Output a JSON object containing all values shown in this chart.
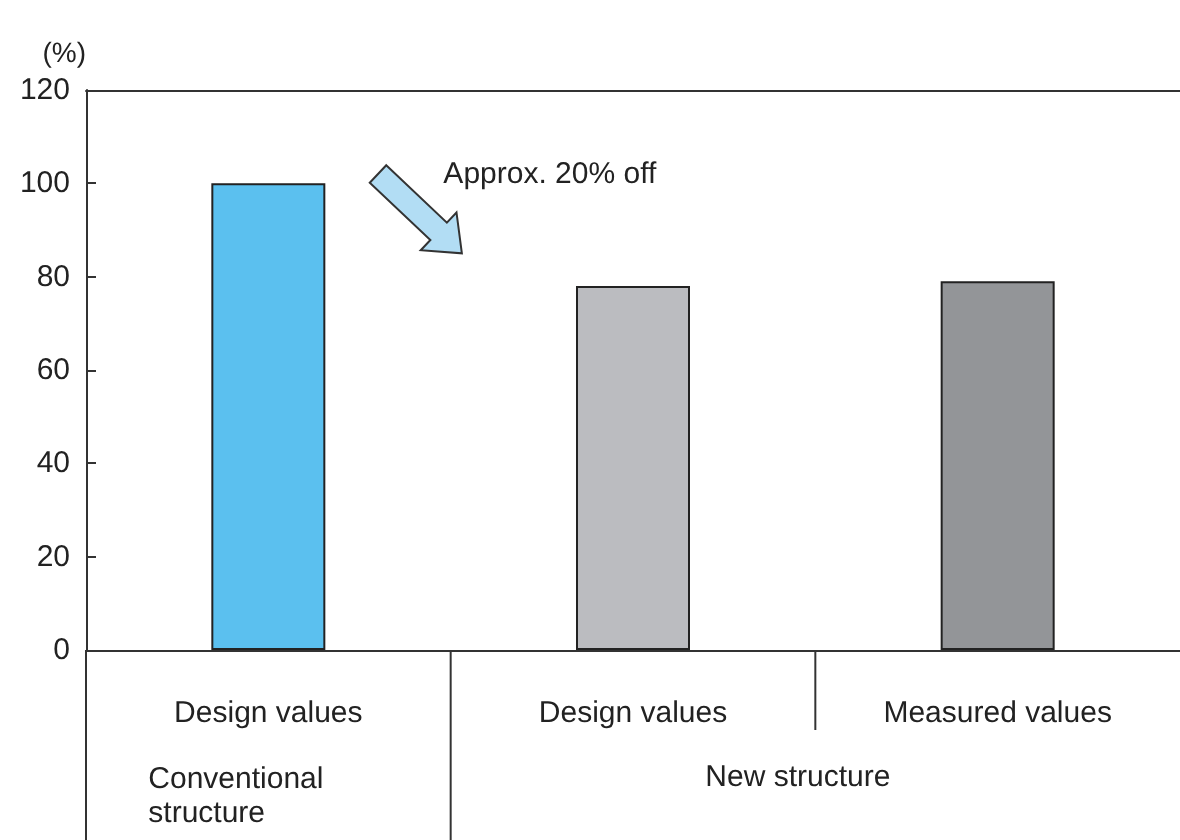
{
  "chart_data": {
    "type": "bar",
    "ylabel": "(%)",
    "categories": [
      "Design values",
      "Design values",
      "Measured values"
    ],
    "values": [
      100,
      78,
      79
    ],
    "colors": [
      "#5bc0ef",
      "#bbbcc0",
      "#939598"
    ],
    "ylim": [
      0,
      120
    ],
    "yticks": [
      0,
      20,
      40,
      60,
      80,
      100,
      120
    ],
    "grid": false,
    "annotations": [
      "Approx. 20% off",
      "Conventional structure",
      "New structure"
    ]
  }
}
